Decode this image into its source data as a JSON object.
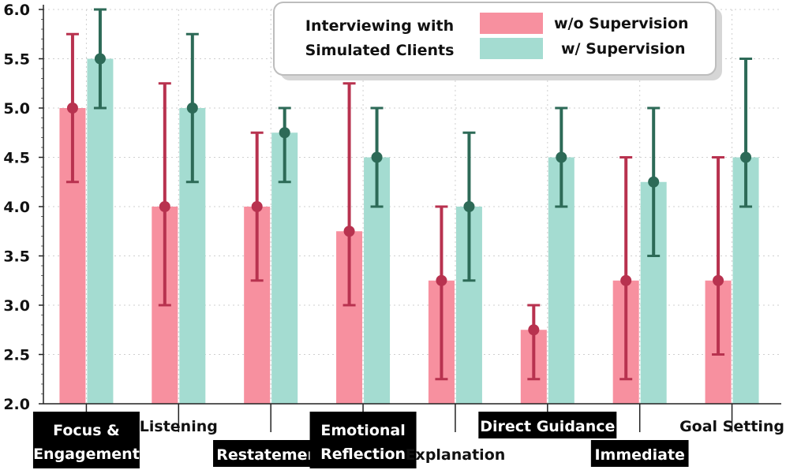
{
  "chart_data": {
    "type": "bar",
    "title": "",
    "xlabel": "",
    "ylabel": "",
    "ylim": [
      2.0,
      6.0
    ],
    "yticks": [
      "2.0",
      "2.5",
      "3.0",
      "3.5",
      "4.0",
      "4.5",
      "5.0",
      "5.5",
      "6.0"
    ],
    "grid": true,
    "legend": {
      "position": "top-right",
      "title_line1": "Interviewing with",
      "title_line2": "Simulated Clients",
      "entries": [
        "w/o Supervision",
        "w/ Supervision"
      ]
    },
    "categories": [
      {
        "line1": "Focus &",
        "line2": "Engagement",
        "style": "dark",
        "label_pos": "low"
      },
      {
        "line1": "Listening",
        "line2": "",
        "style": "light",
        "label_pos": "high"
      },
      {
        "line1": "Restatement",
        "line2": "",
        "style": "dark",
        "label_pos": "low"
      },
      {
        "line1": "Emotional",
        "line2": "Reflection",
        "style": "dark",
        "label_pos": "low"
      },
      {
        "line1": "Explanation",
        "line2": "",
        "style": "light",
        "label_pos": "low"
      },
      {
        "line1": "Direct Guidance",
        "line2": "",
        "style": "dark",
        "label_pos": "high"
      },
      {
        "line1": "Immediate",
        "line2": "",
        "style": "dark",
        "label_pos": "low"
      },
      {
        "line1": "Goal Setting",
        "line2": "",
        "style": "light",
        "label_pos": "high"
      }
    ],
    "series": [
      {
        "name": "w/o Supervision",
        "bar_color": "#f7909f",
        "marker_color": "#b8324f",
        "values": [
          5.0,
          4.0,
          4.0,
          3.75,
          3.25,
          2.75,
          3.25,
          3.25
        ],
        "err_low": [
          4.25,
          3.0,
          3.25,
          3.0,
          2.25,
          2.25,
          2.25,
          2.5
        ],
        "err_high": [
          5.75,
          5.25,
          4.75,
          5.25,
          4.0,
          3.0,
          4.5,
          4.5
        ]
      },
      {
        "name": "w/ Supervision",
        "bar_color": "#a4dcd1",
        "marker_color": "#2d6a57",
        "values": [
          5.5,
          5.0,
          4.75,
          4.5,
          4.0,
          4.5,
          4.25,
          4.5
        ],
        "err_low": [
          5.0,
          4.25,
          4.25,
          4.0,
          3.25,
          4.0,
          3.5,
          4.0
        ],
        "err_high": [
          6.0,
          5.75,
          5.0,
          5.0,
          4.75,
          5.0,
          5.0,
          5.5
        ]
      }
    ]
  }
}
